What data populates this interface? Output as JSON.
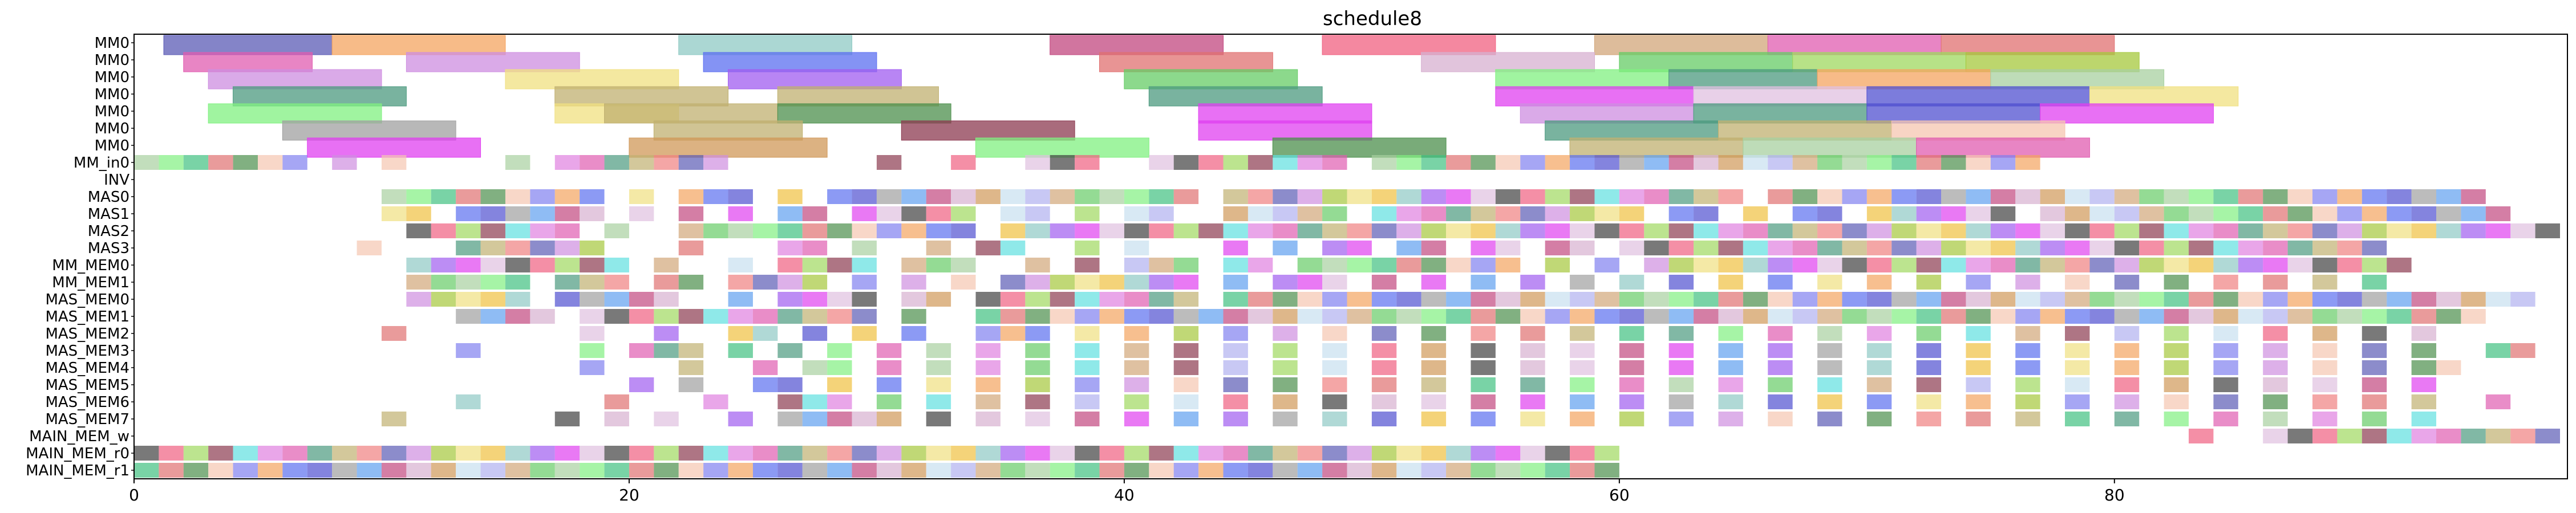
{
  "chart_data": {
    "type": "gantt",
    "title": "schedule8",
    "xlabel": "",
    "ylabel": "",
    "xlim": [
      0,
      98.3
    ],
    "xticks": [
      0,
      20,
      40,
      60,
      80
    ],
    "rows": [
      "MM0",
      "MM0",
      "MM0",
      "MM0",
      "MM0",
      "MM0",
      "MM0",
      "MM_in0",
      "INV",
      "MAS0",
      "MAS1",
      "MAS2",
      "MAS3",
      "MM_MEM0",
      "MM_MEM1",
      "MAS_MEM0",
      "MAS_MEM1",
      "MAS_MEM2",
      "MAS_MEM3",
      "MAS_MEM4",
      "MAS_MEM5",
      "MAS_MEM6",
      "MAS_MEM7",
      "MAIN_MEM_w",
      "MAIN_MEM_r0",
      "MAIN_MEM_r1"
    ],
    "palette": [
      "#5b5bb5",
      "#f4a460",
      "#8fc9c4",
      "#c2477f",
      "#f06080",
      "#d2a679",
      "#e05cb0",
      "#e07070",
      "#ce8ee0",
      "#5b6ff0",
      "#a05cf0",
      "#d7b0d0",
      "#9fd85f",
      "#66cc66",
      "#4c9a7f",
      "#4c8f4c",
      "#a5c83c",
      "#5050d0",
      "#e040f0",
      "#d09858",
      "#8c3a50",
      "#a8d0a0",
      "#c0b070",
      "#f5c6b0",
      "#f0e080",
      "#a0a0a0",
      "#e0c0e0",
      "#c8e0f0",
      "#60e0e0",
      "#80f080",
      "#f08080",
      "#8080f0",
      "#f0c040",
      "#60a0f0",
      "#404040",
      "#b0b0f0",
      "#e080e0",
      "#40c080"
    ],
    "tasks": [
      [
        0,
        1.2,
        8,
        0
      ],
      [
        0,
        8,
        15,
        1
      ],
      [
        0,
        22,
        29,
        2
      ],
      [
        0,
        37,
        44,
        3
      ],
      [
        0,
        48,
        55,
        4
      ],
      [
        0,
        59,
        66,
        5
      ],
      [
        0,
        66,
        73,
        6
      ],
      [
        0,
        73,
        80,
        7
      ],
      [
        1,
        2,
        7.2,
        6
      ],
      [
        1,
        11,
        18,
        8
      ],
      [
        1,
        23,
        30,
        9
      ],
      [
        1,
        39,
        46,
        7
      ],
      [
        1,
        52,
        59,
        11
      ],
      [
        1,
        60,
        67,
        13
      ],
      [
        1,
        67,
        74,
        12
      ],
      [
        1,
        74,
        81,
        16
      ],
      [
        2,
        3,
        10,
        8
      ],
      [
        2,
        15,
        22,
        24
      ],
      [
        2,
        24,
        31,
        10
      ],
      [
        2,
        40,
        47,
        13
      ],
      [
        2,
        55,
        62,
        29
      ],
      [
        2,
        62,
        68,
        14
      ],
      [
        2,
        68,
        75,
        1
      ],
      [
        2,
        75,
        82,
        21
      ],
      [
        3,
        4,
        11,
        14
      ],
      [
        3,
        17,
        24,
        22
      ],
      [
        3,
        26,
        32.5,
        22
      ],
      [
        3,
        41,
        48,
        14
      ],
      [
        3,
        55,
        63,
        18
      ],
      [
        3,
        63,
        70,
        26
      ],
      [
        3,
        70,
        79,
        17
      ],
      [
        3,
        79,
        85,
        24
      ],
      [
        4,
        3,
        10,
        29
      ],
      [
        4,
        17,
        22,
        24
      ],
      [
        4,
        19,
        26,
        22
      ],
      [
        4,
        26,
        33,
        15
      ],
      [
        4,
        43,
        50,
        18
      ],
      [
        4,
        56,
        63,
        8
      ],
      [
        4,
        63,
        70,
        14
      ],
      [
        4,
        70,
        77,
        17
      ],
      [
        4,
        77,
        84,
        18
      ],
      [
        5,
        6,
        13,
        25
      ],
      [
        5,
        21,
        27,
        22
      ],
      [
        5,
        31,
        38,
        20
      ],
      [
        5,
        43,
        50,
        18
      ],
      [
        5,
        57,
        64,
        14
      ],
      [
        5,
        64,
        71,
        22
      ],
      [
        5,
        71,
        78,
        23
      ],
      [
        6,
        7,
        14,
        18
      ],
      [
        6,
        20,
        28,
        19
      ],
      [
        6,
        34,
        41,
        29
      ],
      [
        6,
        46,
        53,
        15
      ],
      [
        6,
        58,
        65,
        22
      ],
      [
        6,
        65,
        72,
        21
      ],
      [
        6,
        72,
        79,
        6
      ]
    ],
    "slots": [
      [
        7,
        [
          0,
          1,
          2,
          3,
          4,
          5,
          6,
          8,
          10,
          15,
          17,
          18,
          19,
          20,
          21,
          22,
          23,
          30,
          33,
          36,
          37,
          38,
          41,
          42,
          43,
          44,
          45,
          46,
          47,
          48,
          50,
          51,
          52,
          53,
          54,
          55,
          56,
          57,
          58,
          59,
          60,
          61,
          62,
          63,
          64,
          65,
          66,
          67,
          68,
          69,
          70,
          71,
          72,
          73,
          74,
          75,
          76
        ]
      ],
      [
        9,
        [
          10,
          11,
          12,
          13,
          14,
          15,
          16,
          17,
          18,
          20,
          22,
          23,
          24,
          26,
          28,
          29,
          30,
          31,
          32,
          33,
          34,
          35,
          36,
          37,
          38,
          39,
          40,
          41,
          42,
          44,
          45,
          46,
          47,
          48,
          49,
          50,
          51,
          52,
          53,
          54,
          55,
          56,
          57,
          58,
          59,
          60,
          61,
          62,
          63,
          64,
          66,
          67,
          68,
          69,
          70,
          71,
          72,
          73,
          74,
          75,
          76,
          77,
          78,
          79,
          80,
          81,
          82,
          83,
          84,
          85,
          86,
          87,
          88,
          89,
          90,
          91,
          92,
          93,
          94
        ]
      ],
      [
        10,
        [
          10,
          11,
          13,
          14,
          15,
          16,
          17,
          18,
          20,
          22,
          24,
          26,
          27,
          29,
          30,
          31,
          32,
          33,
          35,
          36,
          38,
          40,
          41,
          44,
          45,
          46,
          47,
          48,
          50,
          51,
          52,
          53,
          54,
          55,
          56,
          57,
          58,
          59,
          60,
          62,
          63,
          65,
          67,
          68,
          70,
          71,
          72,
          73,
          74,
          75,
          77,
          78,
          79,
          80,
          81,
          82,
          83,
          84,
          85,
          86,
          87,
          88,
          89,
          90,
          91,
          92,
          93,
          94,
          95
        ]
      ],
      [
        11,
        [
          11,
          12,
          13,
          14,
          15,
          16,
          17,
          19,
          22,
          23,
          24,
          25,
          26,
          27,
          28,
          29,
          30,
          31,
          32,
          33,
          35,
          36,
          37,
          38,
          39,
          40,
          41,
          42,
          43,
          44,
          45,
          46,
          47,
          48,
          49,
          50,
          51,
          52,
          53,
          54,
          55,
          56,
          57,
          58,
          59,
          60,
          61,
          62,
          63,
          64,
          65,
          66,
          67,
          68,
          69,
          70,
          71,
          72,
          73,
          74,
          75,
          76,
          77,
          78,
          79,
          80,
          81,
          82,
          83,
          84,
          85,
          86,
          87,
          88,
          89,
          90,
          91,
          92,
          93,
          94,
          95,
          96,
          97
        ]
      ],
      [
        12,
        [
          9,
          13,
          14,
          15,
          16,
          17,
          18,
          22,
          26,
          27,
          29,
          32,
          34,
          35,
          38,
          40,
          44,
          46,
          48,
          49,
          51,
          52,
          54,
          55,
          57,
          58,
          60,
          61,
          62,
          63,
          64,
          65,
          66,
          67,
          68,
          69,
          70,
          71,
          72,
          73,
          74,
          75,
          76,
          77,
          78,
          79,
          80,
          81,
          82,
          83,
          84,
          85,
          86,
          87,
          88,
          89,
          90
        ]
      ],
      [
        13,
        [
          11,
          12,
          13,
          14,
          15,
          16,
          17,
          18,
          19,
          21,
          24,
          26,
          27,
          28,
          29,
          31,
          32,
          33,
          36,
          38,
          40,
          41,
          42,
          44,
          45,
          47,
          48,
          49,
          50,
          51,
          52,
          53,
          54,
          55,
          57,
          59,
          61,
          62,
          63,
          64,
          65,
          66,
          67,
          68,
          69,
          70,
          71,
          72,
          73,
          74,
          75,
          76,
          77,
          78,
          79,
          80,
          81,
          82,
          83,
          84,
          85,
          86,
          87,
          88,
          89,
          90,
          91
        ]
      ],
      [
        14,
        [
          11,
          12,
          13,
          14,
          15,
          17,
          18,
          19,
          21,
          22,
          24,
          25,
          26,
          27,
          29,
          31,
          33,
          35,
          36,
          37,
          38,
          39,
          40,
          41,
          42,
          44,
          46,
          47,
          48,
          50,
          52,
          54,
          56,
          58,
          60,
          62,
          64,
          66,
          68,
          70,
          72,
          74,
          76,
          78,
          80,
          82,
          84,
          86,
          88,
          90
        ]
      ],
      [
        15,
        [
          11,
          12,
          13,
          14,
          15,
          17,
          18,
          19,
          20,
          21,
          24,
          26,
          27,
          28,
          29,
          31,
          32,
          34,
          35,
          36,
          37,
          38,
          39,
          40,
          41,
          42,
          44,
          45,
          46,
          47,
          48,
          49,
          50,
          51,
          52,
          53,
          54,
          55,
          56,
          57,
          58,
          59,
          60,
          61,
          62,
          63,
          64,
          65,
          66,
          67,
          68,
          69,
          70,
          71,
          72,
          73,
          74,
          75,
          76,
          77,
          78,
          79,
          80,
          81,
          82,
          83,
          84,
          85,
          86,
          87,
          88,
          89,
          90,
          91,
          92,
          93,
          94,
          95,
          96
        ]
      ],
      [
        16,
        [
          13,
          14,
          15,
          16,
          18,
          19,
          20,
          21,
          22,
          23,
          24,
          25,
          26,
          27,
          28,
          29,
          31,
          34,
          35,
          36,
          37,
          38,
          39,
          40,
          41,
          42,
          43,
          44,
          45,
          46,
          47,
          48,
          49,
          50,
          51,
          52,
          53,
          54,
          55,
          56,
          57,
          58,
          59,
          60,
          61,
          62,
          63,
          64,
          65,
          66,
          67,
          68,
          69,
          70,
          71,
          72,
          73,
          74,
          75,
          76,
          77,
          78,
          79,
          80,
          81,
          82,
          83,
          84,
          85,
          86,
          87,
          88,
          89,
          90,
          91,
          92,
          93,
          94
        ]
      ],
      [
        17,
        [
          10,
          18,
          21,
          24,
          25,
          27,
          29,
          31,
          34,
          35,
          36,
          38,
          40,
          42,
          44,
          46,
          48,
          50,
          52,
          54,
          56,
          58,
          60,
          62,
          64,
          66,
          68,
          70,
          72,
          74,
          76,
          78,
          80,
          82,
          84,
          86,
          88,
          90,
          92
        ]
      ],
      [
        18,
        [
          13,
          18,
          20,
          21,
          22,
          24,
          26,
          28,
          30,
          32,
          34,
          36,
          38,
          40,
          42,
          44,
          46,
          48,
          50,
          52,
          54,
          56,
          58,
          60,
          62,
          64,
          66,
          68,
          70,
          72,
          74,
          76,
          78,
          80,
          82,
          84,
          86,
          88,
          90,
          92,
          95,
          96
        ]
      ],
      [
        19,
        [
          18,
          22,
          25,
          27,
          28,
          30,
          32,
          34,
          36,
          38,
          40,
          42,
          44,
          46,
          48,
          50,
          52,
          54,
          56,
          58,
          60,
          62,
          64,
          66,
          68,
          70,
          72,
          74,
          76,
          78,
          80,
          82,
          84,
          86,
          88,
          90,
          92,
          93
        ]
      ],
      [
        20,
        [
          20,
          22,
          25,
          26,
          28,
          30,
          32,
          34,
          36,
          38,
          40,
          42,
          44,
          46,
          48,
          50,
          52,
          54,
          56,
          58,
          60,
          62,
          64,
          66,
          68,
          70,
          72,
          74,
          76,
          78,
          80,
          82,
          84,
          86,
          88,
          90,
          92
        ]
      ],
      [
        21,
        [
          13,
          19,
          23,
          26,
          27,
          28,
          30,
          32,
          34,
          36,
          38,
          40,
          42,
          44,
          46,
          48,
          50,
          52,
          54,
          56,
          58,
          60,
          62,
          64,
          66,
          68,
          70,
          72,
          74,
          76,
          78,
          80,
          82,
          84,
          86,
          88,
          90,
          92,
          95
        ]
      ],
      [
        22,
        [
          10,
          17,
          19,
          21,
          24,
          26,
          27,
          28,
          29,
          30,
          32,
          34,
          36,
          38,
          40,
          42,
          44,
          46,
          48,
          50,
          52,
          54,
          56,
          58,
          60,
          62,
          64,
          66,
          68,
          70,
          72,
          74,
          76,
          78,
          80,
          82,
          84,
          86,
          88,
          90,
          92
        ]
      ],
      [
        23,
        [
          83,
          86,
          87,
          88,
          89,
          90,
          91,
          92,
          93,
          94,
          95,
          96,
          97
        ]
      ],
      [
        24,
        [
          0,
          1,
          2,
          3,
          4,
          5,
          6,
          7,
          8,
          9,
          10,
          11,
          12,
          13,
          14,
          15,
          16,
          17,
          18,
          19,
          20,
          21,
          22,
          23,
          24,
          25,
          26,
          27,
          28,
          29,
          30,
          31,
          32,
          33,
          34,
          35,
          36,
          37,
          38,
          39,
          40,
          41,
          42,
          43,
          44,
          45,
          46,
          47,
          48,
          49,
          50,
          51,
          52,
          53,
          54,
          55,
          56,
          57,
          58,
          59
        ]
      ],
      [
        25,
        [
          0,
          1,
          2,
          3,
          4,
          5,
          6,
          7,
          8,
          9,
          10,
          11,
          12,
          13,
          14,
          15,
          16,
          17,
          18,
          19,
          20,
          21,
          22,
          23,
          24,
          25,
          26,
          27,
          28,
          29,
          30,
          31,
          32,
          33,
          34,
          35,
          36,
          37,
          38,
          39,
          40,
          41,
          42,
          43,
          44,
          45,
          46,
          47,
          48,
          49,
          50,
          51,
          52,
          53,
          54,
          55,
          56,
          57,
          58,
          59
        ]
      ]
    ]
  }
}
